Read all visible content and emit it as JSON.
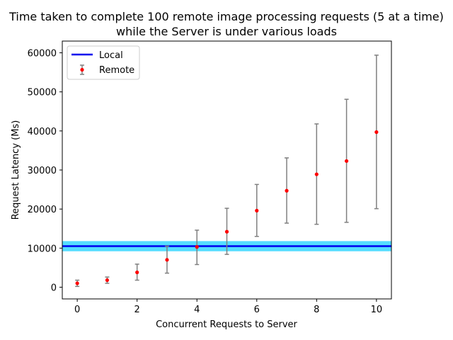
{
  "chart_data": {
    "type": "scatter",
    "title_line1": "Time taken to complete 100 remote image processing requests (5 at a time)",
    "title_line2": "while the Server is under various loads",
    "xlabel": "Concurrent Requests to Server",
    "ylabel": "Request Latency (Ms)",
    "xlim": [
      -0.5,
      10.5
    ],
    "ylim": [
      -3000,
      63000
    ],
    "xticks": [
      0,
      2,
      4,
      6,
      8,
      10
    ],
    "yticks": [
      0,
      10000,
      20000,
      30000,
      40000,
      50000,
      60000
    ],
    "grid": false,
    "legend_position": "upper-left",
    "local": {
      "name": "Local",
      "value": 10500,
      "band_low": 9200,
      "band_high": 11800,
      "line_color": "#0000ee",
      "band_color": "#55ddff"
    },
    "remote": {
      "name": "Remote",
      "marker_color": "#ff0000",
      "errorbar_color": "#808080",
      "points": [
        {
          "x": 0,
          "y": 1000,
          "low": 200,
          "high": 1800
        },
        {
          "x": 1,
          "y": 1800,
          "low": 1000,
          "high": 2600
        },
        {
          "x": 2,
          "y": 3800,
          "low": 1800,
          "high": 5900
        },
        {
          "x": 3,
          "y": 7000,
          "low": 3600,
          "high": 10500
        },
        {
          "x": 4,
          "y": 10300,
          "low": 5800,
          "high": 14600
        },
        {
          "x": 5,
          "y": 14200,
          "low": 8400,
          "high": 20200
        },
        {
          "x": 6,
          "y": 19600,
          "low": 13000,
          "high": 26300
        },
        {
          "x": 7,
          "y": 24700,
          "low": 16400,
          "high": 33100
        },
        {
          "x": 8,
          "y": 28900,
          "low": 16100,
          "high": 41800
        },
        {
          "x": 9,
          "y": 32300,
          "low": 16600,
          "high": 48100
        },
        {
          "x": 10,
          "y": 39700,
          "low": 20100,
          "high": 59400
        }
      ]
    }
  }
}
